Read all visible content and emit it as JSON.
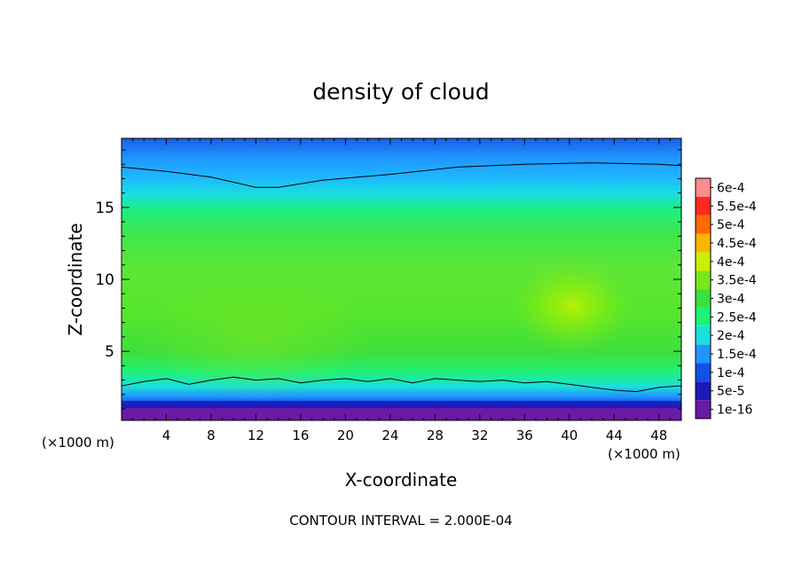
{
  "chart_data": {
    "type": "heatmap",
    "title": "density of cloud",
    "xlabel": "X-coordinate",
    "ylabel": "Z-coordinate",
    "x_unit_left": "(×1000 m)",
    "x_unit_right": "(×1000 m)",
    "xlim": [
      0,
      50
    ],
    "ylim": [
      0.2,
      19.8
    ],
    "x_ticks": [
      4,
      8,
      12,
      16,
      20,
      24,
      28,
      32,
      36,
      40,
      44,
      48
    ],
    "y_ticks": [
      5,
      10,
      15
    ],
    "footer": "CONTOUR INTERVAL = 2.000E-04",
    "colorbar": {
      "levels": [
        {
          "label": "1e-16",
          "color": "#6a1aa6"
        },
        {
          "label": "5e-5",
          "color": "#1a1ab8"
        },
        {
          "label": "1e-4",
          "color": "#1450e6"
        },
        {
          "label": "1.5e-4",
          "color": "#1f96ff"
        },
        {
          "label": "2e-4",
          "color": "#19e0dc"
        },
        {
          "label": "2.5e-4",
          "color": "#1ff07a"
        },
        {
          "label": "3e-4",
          "color": "#3edf3c"
        },
        {
          "label": "3.5e-4",
          "color": "#78e61e"
        },
        {
          "label": "4e-4",
          "color": "#c8f000"
        },
        {
          "label": "4.5e-4",
          "color": "#ffb400"
        },
        {
          "label": "5e-4",
          "color": "#ff6a00"
        },
        {
          "label": "5.5e-4",
          "color": "#ff2a1e"
        },
        {
          "label": "6e-4",
          "color": "#ff8c8c"
        }
      ]
    },
    "contours": [
      {
        "level": "2e-4",
        "points": [
          [
            0,
            17.8
          ],
          [
            4,
            17.5
          ],
          [
            8,
            17.1
          ],
          [
            12,
            16.4
          ],
          [
            14,
            16.4
          ],
          [
            18,
            16.9
          ],
          [
            24,
            17.3
          ],
          [
            30,
            17.8
          ],
          [
            36,
            18.0
          ],
          [
            42,
            18.1
          ],
          [
            48,
            18.0
          ],
          [
            50,
            17.9
          ]
        ]
      },
      {
        "level": "2e-4",
        "points": [
          [
            0,
            2.6
          ],
          [
            2,
            2.9
          ],
          [
            4,
            3.1
          ],
          [
            6,
            2.7
          ],
          [
            8,
            3.0
          ],
          [
            10,
            3.2
          ],
          [
            12,
            3.0
          ],
          [
            14,
            3.1
          ],
          [
            16,
            2.8
          ],
          [
            18,
            3.0
          ],
          [
            20,
            3.1
          ],
          [
            22,
            2.9
          ],
          [
            24,
            3.1
          ],
          [
            26,
            2.8
          ],
          [
            28,
            3.1
          ],
          [
            30,
            3.0
          ],
          [
            32,
            2.9
          ],
          [
            34,
            3.0
          ],
          [
            36,
            2.8
          ],
          [
            38,
            2.9
          ],
          [
            40,
            2.7
          ],
          [
            42,
            2.5
          ],
          [
            44,
            2.3
          ],
          [
            46,
            2.2
          ],
          [
            48,
            2.5
          ],
          [
            50,
            2.6
          ]
        ]
      }
    ],
    "notable_regions": [
      {
        "description_level": "3.5e-4",
        "x": 40,
        "z": 9
      }
    ]
  }
}
